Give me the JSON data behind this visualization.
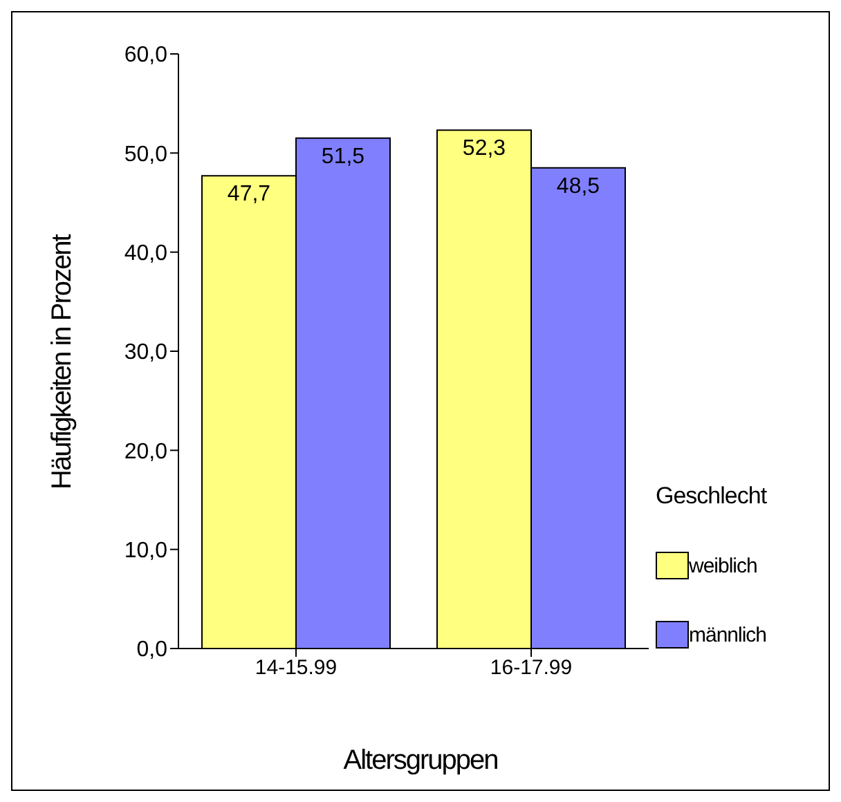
{
  "chart_data": {
    "type": "bar",
    "xlabel": "Altersgruppen",
    "ylabel": "Häufigkeiten in Prozent",
    "legend_title": "Geschlecht",
    "categories": [
      "14-15.99",
      "16-17.99"
    ],
    "series": [
      {
        "name": "weiblich",
        "color": "#ffff80",
        "values": [
          47.7,
          52.3
        ],
        "value_labels": [
          "47,7",
          "52,3"
        ]
      },
      {
        "name": "männlich",
        "color": "#8080ff",
        "values": [
          51.5,
          48.5
        ],
        "value_labels": [
          "51,5",
          "48,5"
        ]
      }
    ],
    "ylim": [
      0,
      60
    ],
    "yticks": [
      {
        "value": 0,
        "label": "0,0"
      },
      {
        "value": 10,
        "label": "10,0"
      },
      {
        "value": 20,
        "label": "20,0"
      },
      {
        "value": 30,
        "label": "30,0"
      },
      {
        "value": 40,
        "label": "40,0"
      },
      {
        "value": 50,
        "label": "50,0"
      },
      {
        "value": 60,
        "label": "60,0"
      }
    ],
    "grid": false,
    "legend": "right"
  }
}
